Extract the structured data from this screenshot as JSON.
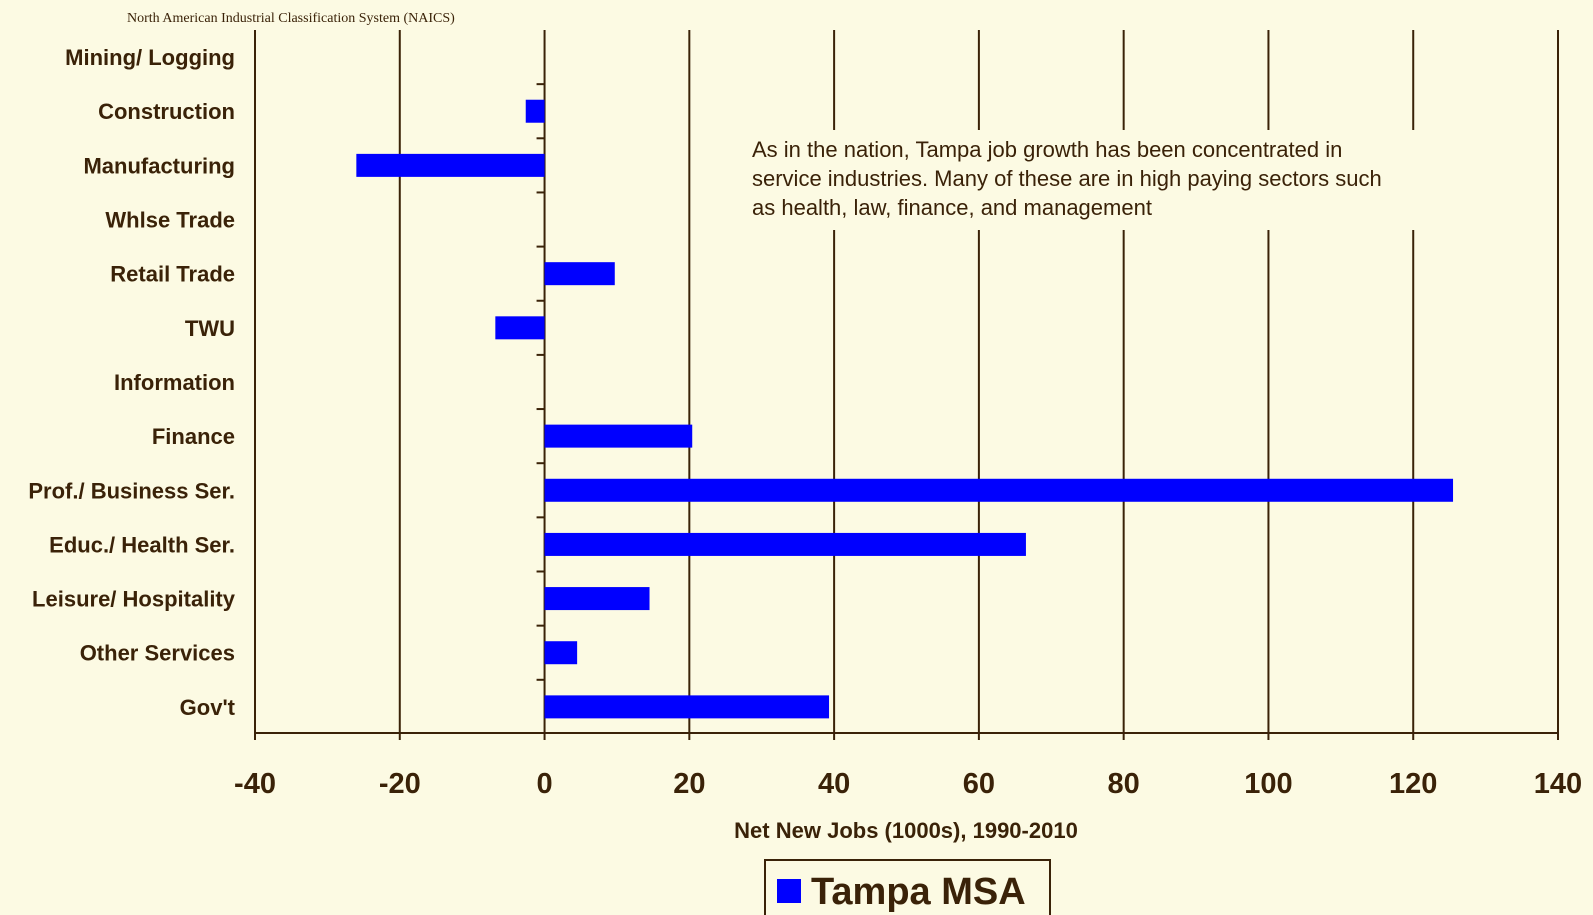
{
  "source_note": "North American Industrial Classification System (NAICS)",
  "annotation": [
    "As in the nation, Tampa job growth has been concentrated in",
    "service industries.  Many of these are in high paying sectors such",
    "as health, law, finance, and management"
  ],
  "colors": {
    "background": "#fcfae3",
    "bar": "#0000ff",
    "axis": "#3a2208",
    "text": "#3a2208"
  },
  "chart_data": {
    "type": "bar",
    "orientation": "horizontal",
    "categories": [
      "Mining/ Logging",
      "Construction",
      "Manufacturing",
      "Whlse Trade",
      "Retail Trade",
      "TWU",
      "Information",
      "Finance",
      "Prof./ Business Ser.",
      "Educ./ Health Ser.",
      "Leisure/ Hospitality",
      "Other Services",
      "Gov't"
    ],
    "series": [
      {
        "name": "Tampa MSA",
        "values": [
          0,
          -2.6,
          -26,
          0,
          9.7,
          -6.8,
          0,
          20.4,
          125.5,
          66.5,
          14.5,
          4.5,
          39.3
        ]
      }
    ],
    "xlabel": "Net New Jobs (1000s), 1990-2010",
    "ylabel": "",
    "xlim": [
      -40,
      140
    ],
    "xticks": [
      -40,
      -20,
      0,
      20,
      40,
      60,
      80,
      100,
      120,
      140
    ],
    "xtick_labels": [
      "-40",
      "-20",
      "0",
      "20",
      "40",
      "60",
      "80",
      "100",
      "120",
      "140"
    ],
    "grid": "vertical",
    "legend": {
      "position": "bottom-center",
      "entries": [
        "Tampa MSA"
      ]
    }
  }
}
